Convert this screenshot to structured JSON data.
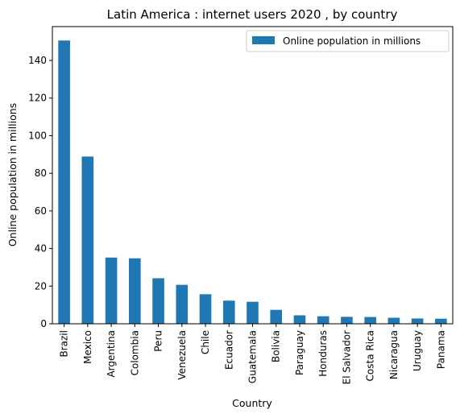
{
  "chart_data": {
    "type": "bar",
    "title": "Latin America : internet users 2020 , by country",
    "xlabel": "Country",
    "ylabel": "Online population in millions",
    "ylim": [
      0,
      158
    ],
    "yticks": [
      0,
      20,
      40,
      60,
      80,
      100,
      120,
      140
    ],
    "grid": false,
    "legend_position": "top-right",
    "categories": [
      "Brazil",
      "Mexico",
      "Argentina",
      "Colombia",
      "Peru",
      "Venezuela",
      "Chile",
      "Ecuador",
      "Guatemala",
      "Bolivia",
      "Paraguay",
      "Honduras",
      "El Salvador",
      "Costa Rica",
      "Nicaragua",
      "Uruguay",
      "Panama"
    ],
    "series": [
      {
        "name": "Online population in millions",
        "color": "#1f77b4",
        "values": [
          150.6,
          88.9,
          35.2,
          34.8,
          24.2,
          20.7,
          15.7,
          12.3,
          11.7,
          7.4,
          4.5,
          4.0,
          3.7,
          3.6,
          3.2,
          2.8,
          2.7
        ]
      }
    ]
  }
}
